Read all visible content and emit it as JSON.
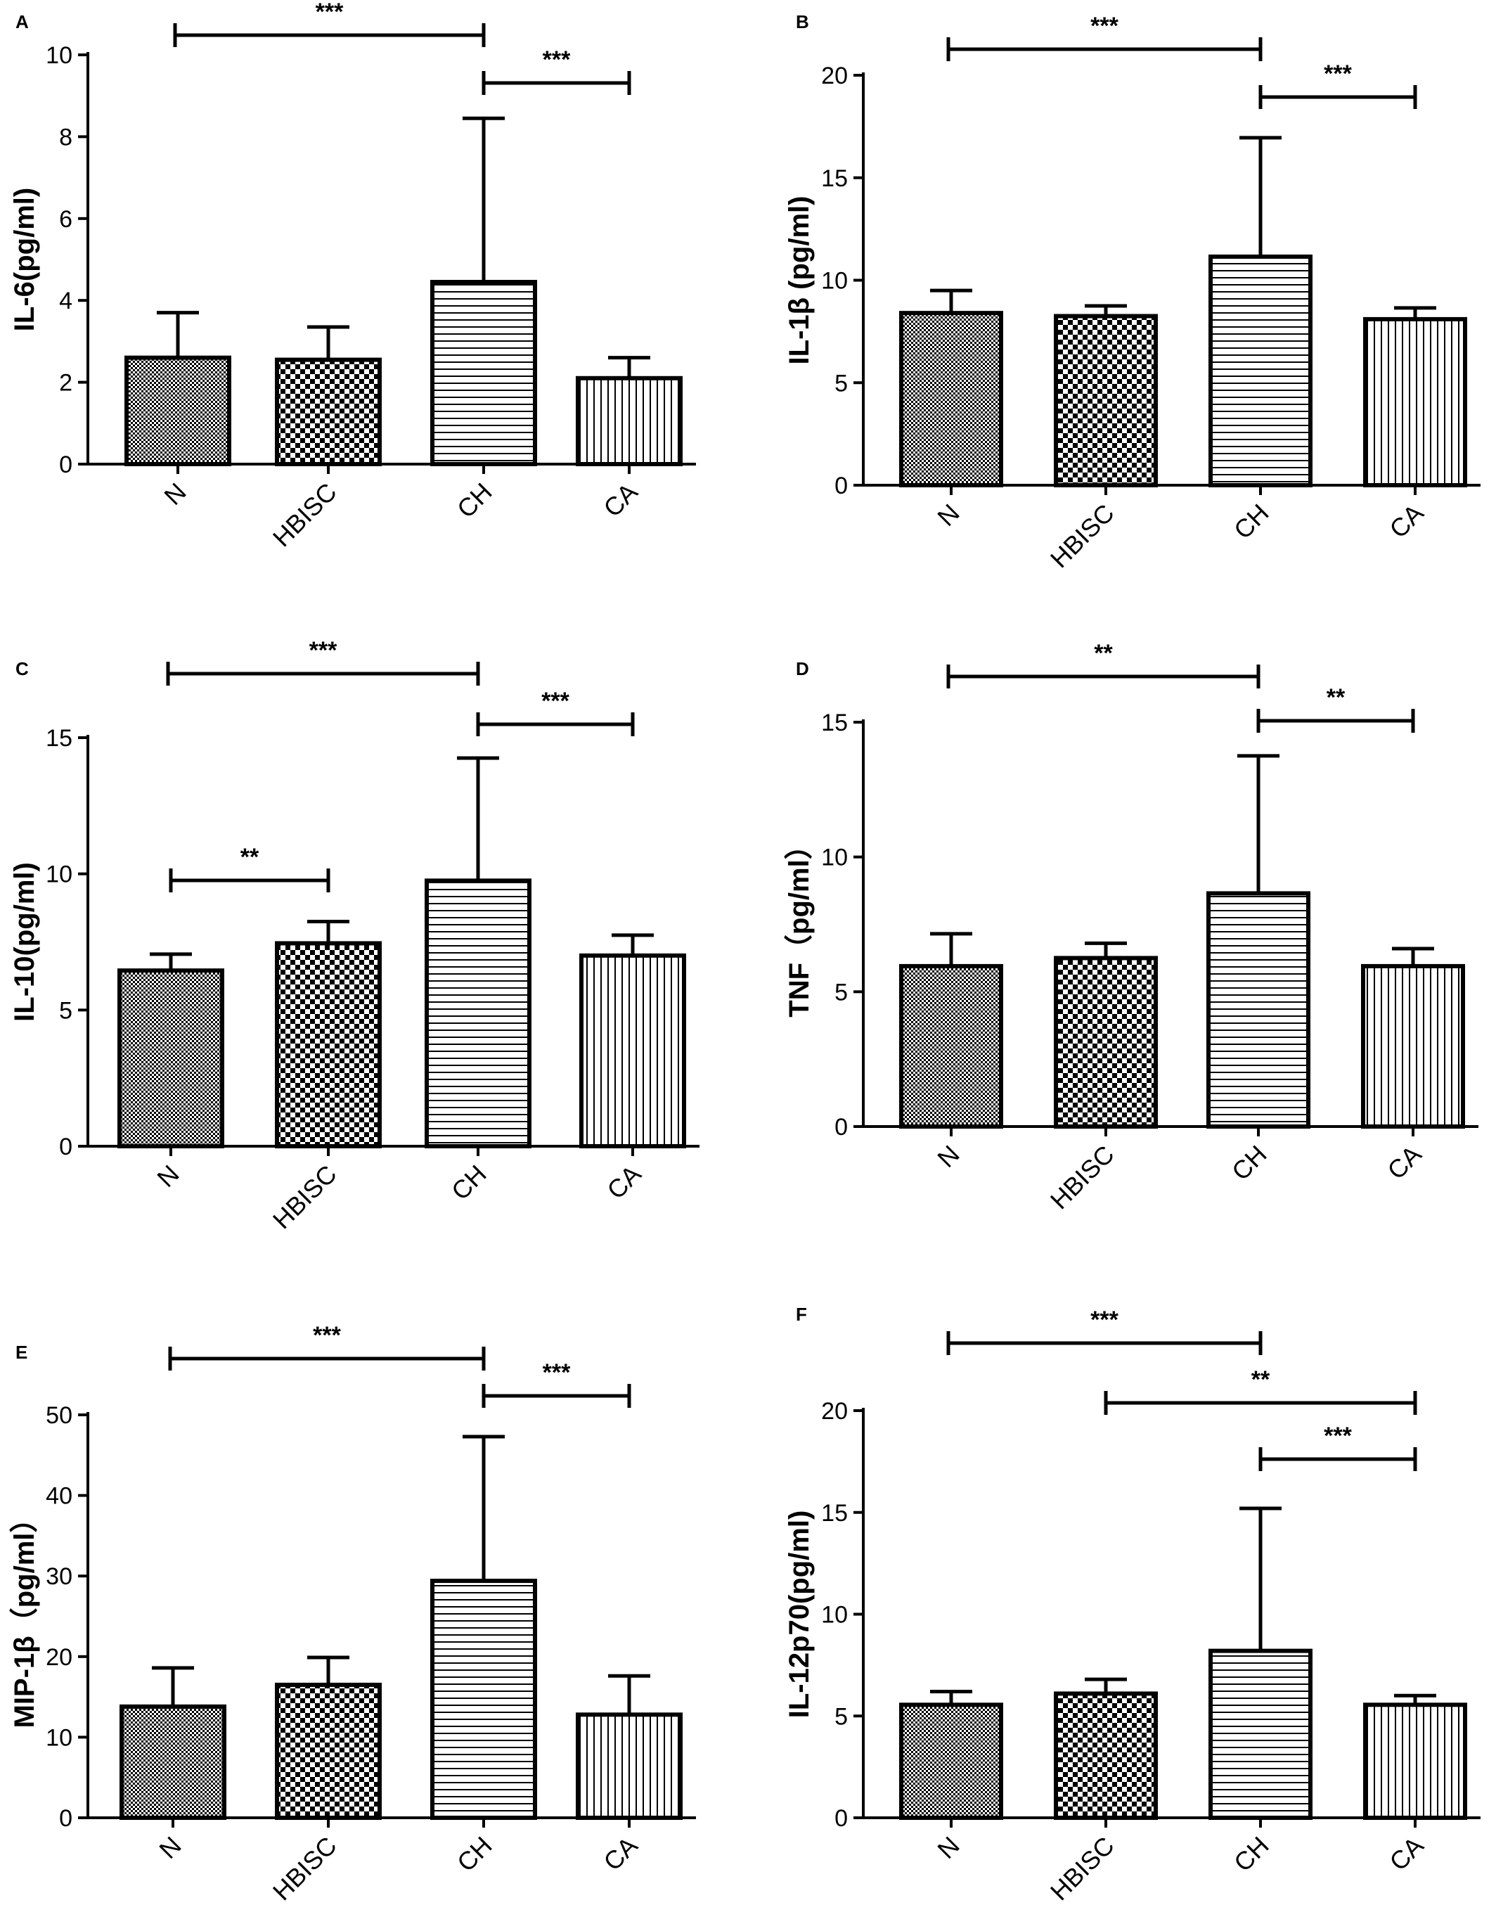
{
  "chart_data": [
    {
      "type": "bar",
      "panel": "A",
      "categories": [
        "N",
        "HBISC",
        "CH",
        "CA"
      ],
      "patterns": [
        "fine-checker",
        "checker",
        "horizontal",
        "vertical"
      ],
      "values": [
        2.6,
        2.55,
        4.45,
        2.1
      ],
      "errors": [
        1.1,
        0.8,
        4.0,
        0.5
      ],
      "ylabel": "IL-6(pg/ml)",
      "ylim": [
        0,
        10
      ],
      "yticks": [
        "0",
        "2",
        "4",
        "6",
        "8",
        "10"
      ],
      "significance": [
        {
          "from": 0,
          "to": 2,
          "label": "***"
        },
        {
          "from": 2,
          "to": 3,
          "label": "***"
        }
      ]
    },
    {
      "type": "bar",
      "panel": "B",
      "categories": [
        "N",
        "HBISC",
        "CH",
        "CA"
      ],
      "patterns": [
        "fine-checker",
        "checker",
        "horizontal",
        "vertical"
      ],
      "values": [
        8.4,
        8.25,
        11.15,
        8.1
      ],
      "errors": [
        1.1,
        0.5,
        5.8,
        0.55
      ],
      "ylabel": "IL-1β (pg/ml)",
      "ylim": [
        0,
        20
      ],
      "yticks": [
        "0",
        "5",
        "10",
        "15",
        "20"
      ],
      "significance": [
        {
          "from": 0,
          "to": 2,
          "label": "***"
        },
        {
          "from": 2,
          "to": 3,
          "label": "***"
        }
      ]
    },
    {
      "type": "bar",
      "panel": "C",
      "categories": [
        "N",
        "HBISC",
        "CH",
        "CA"
      ],
      "patterns": [
        "fine-checker",
        "checker",
        "horizontal",
        "vertical"
      ],
      "values": [
        6.45,
        7.45,
        9.75,
        7.0
      ],
      "errors": [
        0.6,
        0.8,
        4.5,
        0.75
      ],
      "ylabel": "IL-10(pg/ml)",
      "ylim": [
        0,
        15
      ],
      "yticks": [
        "0",
        "5",
        "10",
        "15"
      ],
      "significance": [
        {
          "from": 0,
          "to": 2,
          "label": "***"
        },
        {
          "from": 2,
          "to": 3,
          "label": "***"
        },
        {
          "from": 0,
          "to": 1,
          "label": "**"
        }
      ]
    },
    {
      "type": "bar",
      "panel": "D",
      "categories": [
        "N",
        "HBISC",
        "CH",
        "CA"
      ],
      "patterns": [
        "fine-checker",
        "checker",
        "horizontal",
        "vertical"
      ],
      "values": [
        5.95,
        6.25,
        8.65,
        5.95
      ],
      "errors": [
        1.2,
        0.55,
        5.1,
        0.65
      ],
      "ylabel": "TNF（pg/ml）",
      "ylim": [
        0,
        15
      ],
      "yticks": [
        "0",
        "5",
        "10",
        "15"
      ],
      "significance": [
        {
          "from": 0,
          "to": 2,
          "label": "**"
        },
        {
          "from": 2,
          "to": 3,
          "label": "**"
        }
      ]
    },
    {
      "type": "bar",
      "panel": "E",
      "categories": [
        "N",
        "HBISC",
        "CH",
        "CA"
      ],
      "patterns": [
        "fine-checker",
        "checker",
        "horizontal",
        "vertical"
      ],
      "values": [
        13.8,
        16.5,
        29.4,
        12.8
      ],
      "errors": [
        4.8,
        3.4,
        17.9,
        4.8
      ],
      "ylabel": "MIP-1β（pg/ml）",
      "ylim": [
        0,
        50
      ],
      "yticks": [
        "0",
        "10",
        "20",
        "30",
        "40",
        "50"
      ],
      "significance": [
        {
          "from": 0,
          "to": 2,
          "label": "***"
        },
        {
          "from": 2,
          "to": 3,
          "label": "***"
        }
      ]
    },
    {
      "type": "bar",
      "panel": "F",
      "categories": [
        "N",
        "HBISC",
        "CH",
        "CA"
      ],
      "patterns": [
        "fine-checker",
        "checker",
        "horizontal",
        "vertical"
      ],
      "values": [
        5.55,
        6.1,
        8.2,
        5.55
      ],
      "errors": [
        0.65,
        0.7,
        7.0,
        0.45
      ],
      "ylabel": "IL-12p70(pg/ml)",
      "ylim": [
        0,
        20
      ],
      "yticks": [
        "0",
        "5",
        "10",
        "15",
        "20"
      ],
      "significance": [
        {
          "from": 0,
          "to": 2,
          "label": "***"
        },
        {
          "from": 1,
          "to": 3,
          "label": "**"
        },
        {
          "from": 2,
          "to": 3,
          "label": "***"
        }
      ]
    }
  ]
}
